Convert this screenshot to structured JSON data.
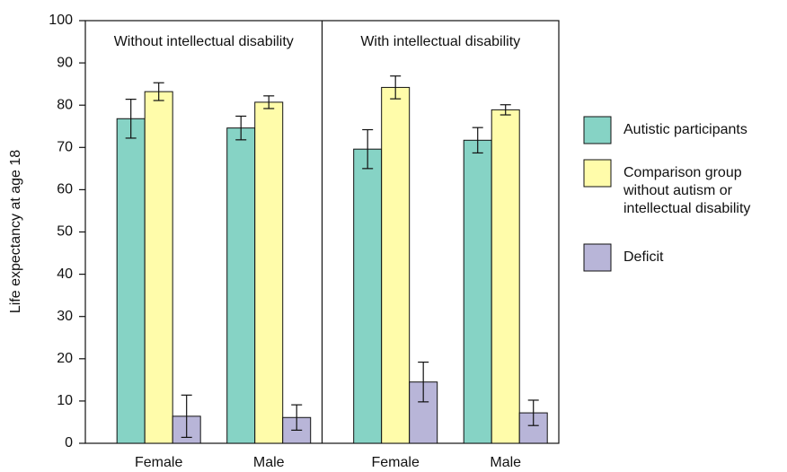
{
  "chart_data": {
    "type": "bar",
    "ylabel": "Life expectancy at age 18",
    "ylim": [
      0,
      100
    ],
    "yticks": [
      0,
      10,
      20,
      30,
      40,
      50,
      60,
      70,
      80,
      90,
      100
    ],
    "panel_titles": [
      "Without intellectual disability",
      "With intellectual disability"
    ],
    "categories": [
      "Female",
      "Male",
      "Female",
      "Male"
    ],
    "series": [
      {
        "name": "Autistic participants",
        "color": "#86d3c5",
        "values": [
          76.8,
          74.6,
          69.6,
          71.7
        ],
        "errors": [
          4.6,
          2.8,
          4.6,
          3.0
        ]
      },
      {
        "name": "Comparison group without autism or intellectual disability",
        "color": "#fffcaa",
        "values": [
          83.2,
          80.7,
          84.2,
          78.9
        ],
        "errors": [
          2.1,
          1.5,
          2.7,
          1.2
        ]
      },
      {
        "name": "Deficit",
        "color": "#b8b5d8",
        "values": [
          6.4,
          6.1,
          14.5,
          7.2
        ],
        "errors": [
          5.0,
          3.0,
          4.7,
          3.0
        ]
      }
    ]
  }
}
